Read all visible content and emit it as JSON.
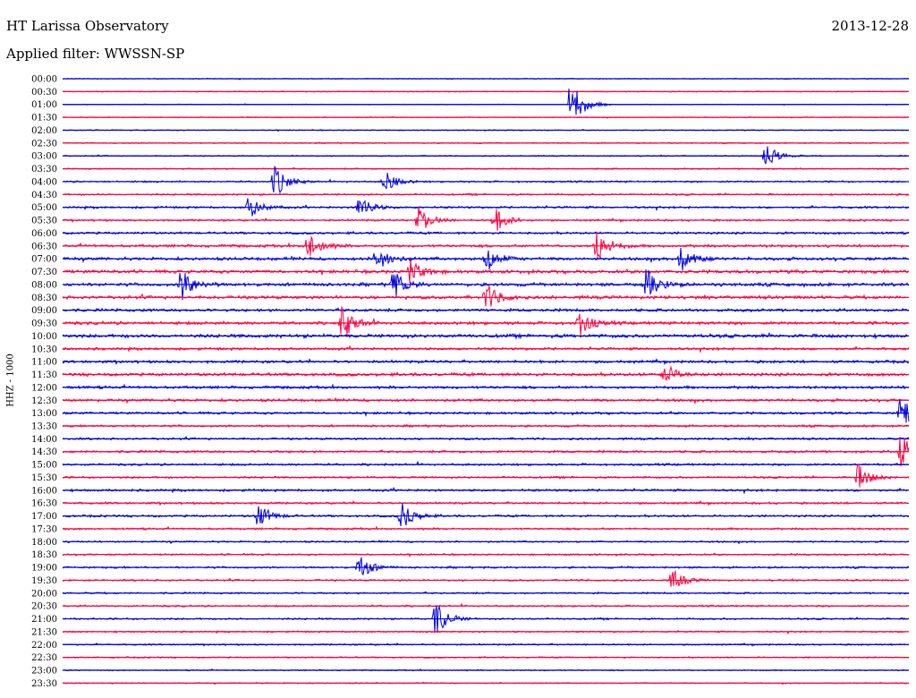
{
  "header": {
    "station": "HT Larissa Observatory",
    "date": "2013-12-28",
    "filter": "Applied filter: WWSSN-SP"
  },
  "channel_label": "HHZ - 1000",
  "colors": {
    "trace_a": "#0000e0",
    "trace_b": "#ff0040",
    "axis": "#000000"
  },
  "chart_data": {
    "type": "line",
    "title": "HT Larissa Observatory",
    "ylabel": "HHZ - 1000",
    "row_labels": [
      "00:00",
      "00:30",
      "01:00",
      "01:30",
      "02:00",
      "02:30",
      "03:00",
      "03:30",
      "04:00",
      "04:30",
      "05:00",
      "05:30",
      "06:00",
      "06:30",
      "07:00",
      "07:30",
      "08:00",
      "08:30",
      "09:00",
      "09:30",
      "10:00",
      "10:30",
      "11:00",
      "11:30",
      "12:00",
      "12:30",
      "13:00",
      "13:30",
      "14:00",
      "14:30",
      "15:00",
      "15:30",
      "16:00",
      "16:30",
      "17:00",
      "17:30",
      "18:00",
      "18:30",
      "19:00",
      "19:30",
      "20:00",
      "20:30",
      "21:00",
      "21:30",
      "22:00",
      "22:30",
      "23:00",
      "23:30"
    ],
    "row_colors": [
      "blue",
      "red"
    ],
    "row_noise_level": [
      0.2,
      0.25,
      0.2,
      0.25,
      0.25,
      0.3,
      0.3,
      0.35,
      0.45,
      0.45,
      0.55,
      0.5,
      0.6,
      0.7,
      0.8,
      0.85,
      0.85,
      0.85,
      0.75,
      0.8,
      0.9,
      0.65,
      0.7,
      0.8,
      0.7,
      0.7,
      0.6,
      0.55,
      0.55,
      0.6,
      0.55,
      0.5,
      0.6,
      0.55,
      0.55,
      0.5,
      0.45,
      0.45,
      0.5,
      0.45,
      0.45,
      0.45,
      0.45,
      0.4,
      0.4,
      0.35,
      0.3,
      0.3
    ],
    "events": [
      {
        "row": 2,
        "x": 0.6,
        "amp": 1.4
      },
      {
        "row": 6,
        "x": 0.83,
        "amp": 0.7
      },
      {
        "row": 8,
        "x": 0.25,
        "amp": 0.9
      },
      {
        "row": 8,
        "x": 0.38,
        "amp": 0.6
      },
      {
        "row": 10,
        "x": 0.22,
        "amp": 0.6
      },
      {
        "row": 10,
        "x": 0.35,
        "amp": 0.6
      },
      {
        "row": 11,
        "x": 0.42,
        "amp": 0.8
      },
      {
        "row": 11,
        "x": 0.51,
        "amp": 0.7
      },
      {
        "row": 13,
        "x": 0.29,
        "amp": 0.8
      },
      {
        "row": 13,
        "x": 0.63,
        "amp": 1.0
      },
      {
        "row": 14,
        "x": 0.37,
        "amp": 0.7
      },
      {
        "row": 14,
        "x": 0.5,
        "amp": 0.7
      },
      {
        "row": 14,
        "x": 0.73,
        "amp": 0.8
      },
      {
        "row": 15,
        "x": 0.41,
        "amp": 0.7
      },
      {
        "row": 16,
        "x": 0.14,
        "amp": 0.9
      },
      {
        "row": 16,
        "x": 0.39,
        "amp": 0.8
      },
      {
        "row": 16,
        "x": 0.69,
        "amp": 0.9
      },
      {
        "row": 17,
        "x": 0.5,
        "amp": 0.8
      },
      {
        "row": 19,
        "x": 0.33,
        "amp": 0.9
      },
      {
        "row": 19,
        "x": 0.61,
        "amp": 0.7
      },
      {
        "row": 23,
        "x": 0.71,
        "amp": 0.6
      },
      {
        "row": 26,
        "x": 0.99,
        "amp": 1.0
      },
      {
        "row": 29,
        "x": 0.99,
        "amp": 1.0
      },
      {
        "row": 31,
        "x": 0.94,
        "amp": 0.7
      },
      {
        "row": 34,
        "x": 0.23,
        "amp": 0.7
      },
      {
        "row": 34,
        "x": 0.4,
        "amp": 0.8
      },
      {
        "row": 38,
        "x": 0.35,
        "amp": 0.7
      },
      {
        "row": 39,
        "x": 0.72,
        "amp": 0.6
      },
      {
        "row": 42,
        "x": 0.44,
        "amp": 1.0
      }
    ]
  }
}
